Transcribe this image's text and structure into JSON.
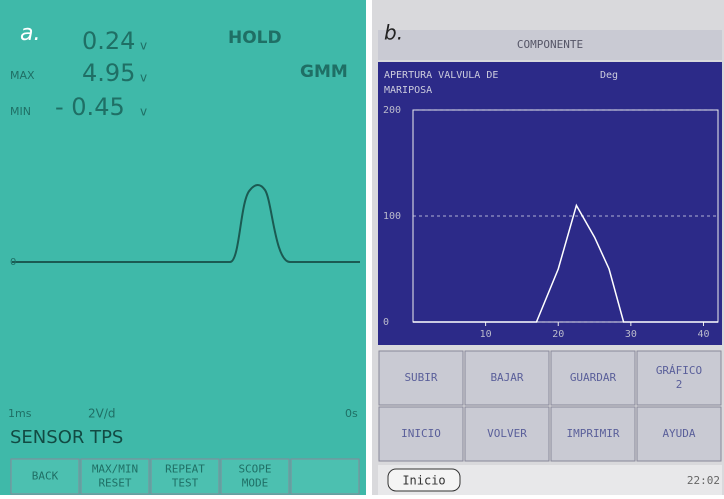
{
  "panel_a": {
    "label": "a.",
    "reading": "0.24",
    "reading_unit": "v",
    "max_label": "MAX",
    "max": "4.95",
    "max_unit": "v",
    "min_label": "MIN",
    "min": "- 0.45",
    "min_unit": "v",
    "hold": "HOLD",
    "mode": "GMM",
    "zero": "0",
    "time_left": "1ms",
    "volts_div": "2V/d",
    "time_right": "0s",
    "sensor": "SENSOR TPS",
    "buttons": [
      [
        "BACK"
      ],
      [
        "MAX/MIN",
        "RESET"
      ],
      [
        "REPEAT",
        "TEST"
      ],
      [
        "SCOPE",
        "MODE"
      ]
    ]
  },
  "panel_b": {
    "label": "b.",
    "header": "COMPONENTE",
    "title_lines": [
      "APERTURA VALVULA DE",
      "MARIPOSA"
    ],
    "unit": "Deg",
    "chart": {
      "type": "line",
      "x": [
        0,
        17,
        20,
        22.5,
        25,
        27,
        29,
        42
      ],
      "values": [
        0,
        0,
        50,
        110,
        80,
        50,
        0,
        0
      ],
      "xlim": [
        0,
        42
      ],
      "ylim": [
        0,
        200
      ],
      "xticks": [
        10,
        20,
        30,
        40
      ],
      "yticks": [
        0,
        100,
        200
      ],
      "color": "#ffffff"
    },
    "buttons": [
      [
        "SUBIR"
      ],
      [
        "BAJAR"
      ],
      [
        "GUARDAR"
      ],
      [
        "GRÁFICO",
        "2"
      ],
      [
        "INICIO"
      ],
      [
        "VOLVER"
      ],
      [
        "IMPRIMIR"
      ],
      [
        "AYUDA"
      ]
    ],
    "status": {
      "start": "Inicio",
      "time": "22:02"
    }
  }
}
